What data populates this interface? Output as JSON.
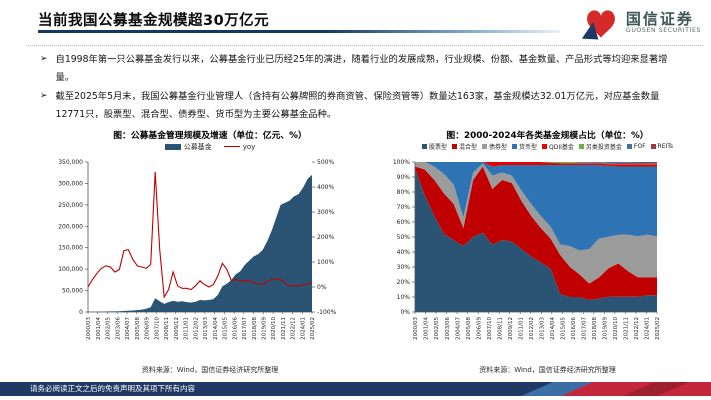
{
  "header": {
    "title": "当前我国公募基金规模超30万亿元",
    "logo_cn": "国信证券",
    "logo_en": "GUOSEN SECURITIES"
  },
  "bullets": [
    "自1998年第一只公募基金发行以来，公募基金行业已历经25年的演进，随着行业的发展成熟，行业规模、份额、基金数量、产品形式等均迎来显著增量。",
    "截至2025年5月末，我国公募基金行业管理人（含持有公募牌照的券商资管、保险资管等）数量达163家，基金规模达32.01万亿元，对应基金数量12771只，股票型、混合型、债券型、货币型为主要公募基金品种。"
  ],
  "footer": {
    "disclaimer": "请务必阅读正文之后的免责声明及其项下所有内容"
  },
  "colors": {
    "accent_navy": "#1F3864",
    "bar_navy": "#2A5374",
    "line_red": "#C00000",
    "logo_red": "#D42A2A"
  },
  "chart_data": [
    {
      "id": "fund-scale-growth",
      "type": "area",
      "title": "图：公募基金管理规模及增速（单位：亿元、%）",
      "source": "资料来源：Wind，国信证券经济研究所整理",
      "x_labels": [
        "2000/03",
        "2001/04",
        "2002/05",
        "2003/06",
        "2004/07",
        "2005/08",
        "2006/09",
        "2007/10",
        "2008/11",
        "2009/12",
        "2011/01",
        "2012/02",
        "2013/03",
        "2014/04",
        "2015/05",
        "2016/06",
        "2017/07",
        "2018/08",
        "2019/09",
        "2020/10",
        "2021/11",
        "2022/12",
        "2024/01",
        "2025/02"
      ],
      "y_left": {
        "min": 0,
        "max": 350000,
        "ticks": [
          "350,000",
          "300,000",
          "250,000",
          "200,000",
          "150,000",
          "100,000",
          "50,000",
          "0"
        ]
      },
      "y_right": {
        "min": -100,
        "max": 500,
        "ticks": [
          "500%",
          "400%",
          "300%",
          "200%",
          "100%",
          "0%",
          "-100%"
        ]
      },
      "series": [
        {
          "name": "公募基金",
          "type": "area",
          "axis": "left",
          "color": "#2A5374",
          "values": [
            400,
            600,
            700,
            900,
            1100,
            1300,
            1500,
            1700,
            2600,
            3000,
            3500,
            4500,
            5500,
            7500,
            11000,
            32000,
            25000,
            19000,
            23000,
            26000,
            24000,
            25000,
            23000,
            22000,
            24000,
            28000,
            27000,
            28000,
            30000,
            40000,
            60000,
            66000,
            75000,
            88000,
            95000,
            110000,
            120000,
            130000,
            135000,
            145000,
            165000,
            190000,
            220000,
            250000,
            255000,
            260000,
            270000,
            275000,
            290000,
            310000,
            320000
          ]
        },
        {
          "name": "yoy",
          "type": "line",
          "axis": "right",
          "color": "#C00000",
          "values": [
            0,
            30,
            55,
            75,
            85,
            80,
            60,
            70,
            145,
            150,
            110,
            85,
            80,
            75,
            90,
            460,
            150,
            -40,
            -10,
            60,
            5,
            -5,
            -5,
            -10,
            5,
            25,
            10,
            0,
            10,
            45,
            95,
            70,
            25,
            30,
            25,
            25,
            25,
            18,
            12,
            12,
            22,
            30,
            33,
            30,
            15,
            5,
            5,
            5,
            8,
            12,
            18
          ]
        }
      ]
    },
    {
      "id": "fund-type-share",
      "type": "area",
      "subtype": "stacked_100",
      "title": "图：2000-2024年各类基金规模占比（单位：%）",
      "source": "资料来源：Wind，国信证券经济研究所整理",
      "x_labels": [
        "2000/03",
        "2001/04",
        "2002/05",
        "2003/06",
        "2004/07",
        "2005/08",
        "2006/09",
        "2007/10",
        "2008/11",
        "2009/12",
        "2011/01",
        "2012/02",
        "2013/03",
        "2014/04",
        "2015/05",
        "2016/06",
        "2017/07",
        "2018/08",
        "2019/09",
        "2020/10",
        "2021/11",
        "2022/12",
        "2024/01",
        "2025/02"
      ],
      "years": [
        "2000",
        "2001",
        "2002",
        "2003",
        "2004",
        "2005",
        "2006",
        "2007",
        "2008",
        "2009",
        "2010",
        "2011",
        "2012",
        "2013",
        "2014",
        "2015",
        "2016",
        "2017",
        "2018",
        "2019",
        "2020",
        "2021",
        "2022",
        "2023",
        "2024",
        "2025"
      ],
      "y_ticks": [
        "100%",
        "90%",
        "80%",
        "70%",
        "60%",
        "50%",
        "40%",
        "30%",
        "20%",
        "10%",
        "0%"
      ],
      "series": [
        {
          "name": "股票型",
          "color": "#2A5374",
          "values": [
            96,
            78,
            64,
            52,
            48,
            44,
            50,
            53,
            45,
            48,
            47,
            42,
            37,
            33,
            29,
            12,
            10,
            10,
            8,
            9,
            10,
            10,
            10,
            10,
            11,
            11
          ]
        },
        {
          "name": "混合型",
          "color": "#C00000",
          "values": [
            1,
            17,
            24,
            27,
            24,
            12,
            38,
            44,
            37,
            40,
            39,
            32,
            27,
            23,
            20,
            26,
            20,
            15,
            11,
            14,
            19,
            22,
            17,
            13,
            12,
            12
          ]
        },
        {
          "name": "债券型",
          "color": "#9B9B9B",
          "values": [
            3,
            5,
            9,
            13,
            13,
            7,
            5,
            2,
            9,
            5,
            5,
            7,
            8,
            8,
            8,
            7,
            14,
            16,
            23,
            26,
            21,
            19,
            24,
            27,
            28,
            27
          ]
        },
        {
          "name": "货币型",
          "color": "#2E74B5",
          "values": [
            0,
            0,
            3,
            8,
            15,
            37,
            7,
            1,
            6,
            5,
            7,
            17,
            26,
            34,
            41,
            53,
            54,
            57,
            56,
            49,
            47,
            45,
            45,
            46,
            45,
            46
          ]
        },
        {
          "name": "QDII基金",
          "color": "#E60000",
          "values": [
            0,
            0,
            0,
            0,
            0,
            0,
            0,
            0,
            3,
            2,
            2,
            2,
            2,
            2,
            1.5,
            1.2,
            1.2,
            1.2,
            1.2,
            1.2,
            1.2,
            1.5,
            1.5,
            1.5,
            1.5,
            1.5
          ]
        },
        {
          "name": "另类投资基金",
          "color": "#70AD47",
          "values": [
            0,
            0,
            0,
            0,
            0,
            0,
            0,
            0,
            0,
            0,
            0,
            0,
            0,
            0,
            0.5,
            0.8,
            0.8,
            0.4,
            0.3,
            0.3,
            0.3,
            0.2,
            0.2,
            0.2,
            0.2,
            0.2
          ]
        },
        {
          "name": "FOF",
          "color": "#41719C",
          "values": [
            0,
            0,
            0,
            0,
            0,
            0,
            0,
            0,
            0,
            0,
            0,
            0,
            0,
            0,
            0,
            0,
            0,
            0.4,
            0.5,
            0.6,
            0.8,
            0.9,
            0.8,
            0.7,
            0.6,
            0.6
          ]
        },
        {
          "name": "REITs",
          "color": "#9C3A3A",
          "values": [
            0,
            0,
            0,
            0,
            0,
            0,
            0,
            0,
            0,
            0,
            0,
            0,
            0,
            0,
            0,
            0,
            0,
            0,
            0,
            0,
            0.3,
            0.4,
            0.5,
            0.6,
            0.7,
            0.7
          ]
        }
      ]
    }
  ]
}
